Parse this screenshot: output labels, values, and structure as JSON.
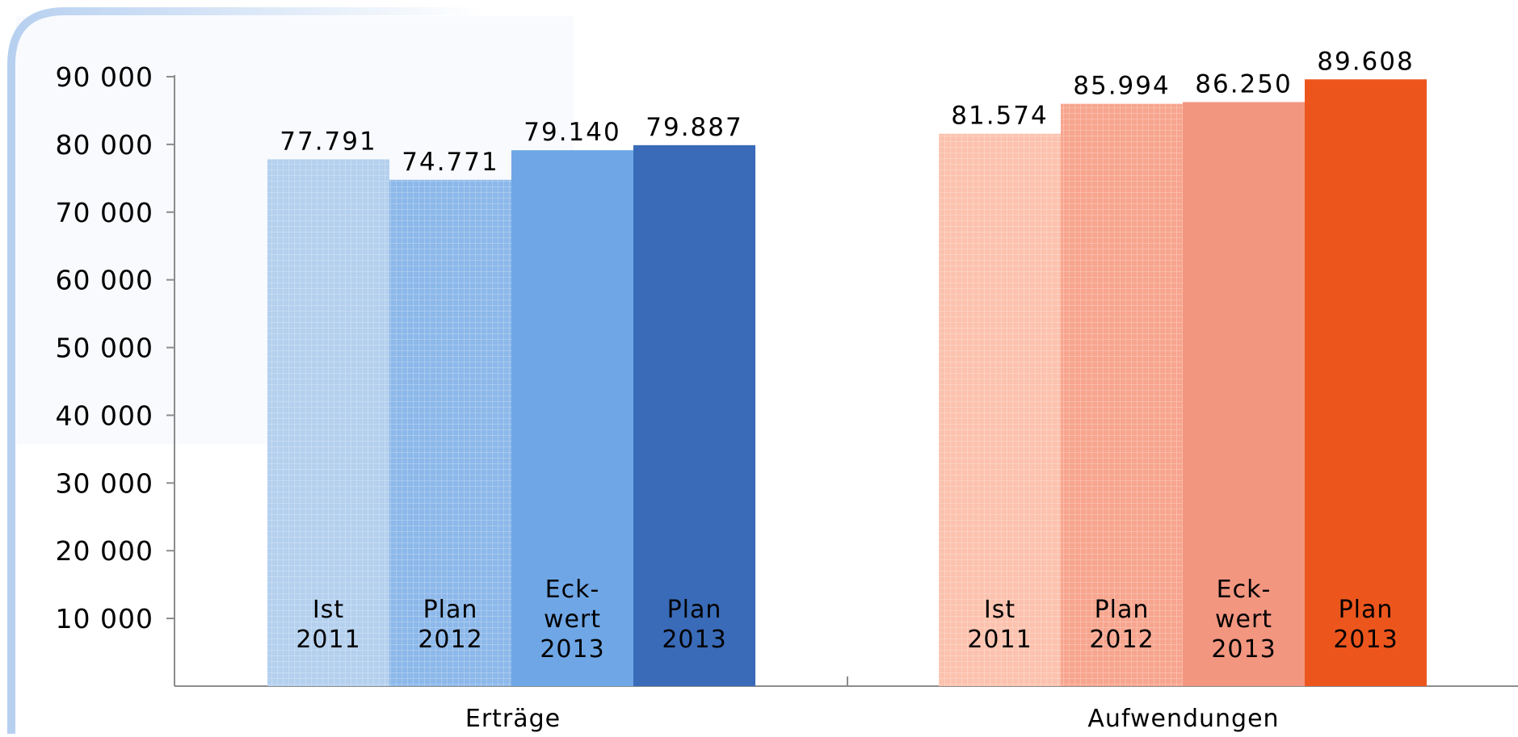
{
  "chart_data": {
    "type": "bar",
    "title": "",
    "xlabel": "",
    "ylabel": "",
    "ylim": [
      0,
      90000
    ],
    "yticks": [
      {
        "value": 10000,
        "label": "10 000"
      },
      {
        "value": 20000,
        "label": "20 000"
      },
      {
        "value": 30000,
        "label": "30 000"
      },
      {
        "value": 40000,
        "label": "40 000"
      },
      {
        "value": 50000,
        "label": "50 000"
      },
      {
        "value": 60000,
        "label": "60 000"
      },
      {
        "value": 70000,
        "label": "70 000"
      },
      {
        "value": 80000,
        "label": "80 000"
      },
      {
        "value": 90000,
        "label": "90 000"
      }
    ],
    "grid": false,
    "legend": "none",
    "groups": [
      {
        "name": "Erträge",
        "bars": [
          {
            "label_lines": [
              "Ist",
              "2011"
            ],
            "value": 77791,
            "value_label": "77.791",
            "color": "#b4d0ee",
            "hatched": true
          },
          {
            "label_lines": [
              "Plan",
              "2012"
            ],
            "value": 74771,
            "value_label": "74.771",
            "color": "#8cb8ea",
            "hatched": true
          },
          {
            "label_lines": [
              "Eck-",
              "wert",
              "2013"
            ],
            "value": 79140,
            "value_label": "79.140",
            "color": "#6fa7e6",
            "hatched": false
          },
          {
            "label_lines": [
              "Plan",
              "2013"
            ],
            "value": 79887,
            "value_label": "79.887",
            "color": "#3a6bb8",
            "hatched": false
          }
        ]
      },
      {
        "name": "Aufwendungen",
        "bars": [
          {
            "label_lines": [
              "Ist",
              "2011"
            ],
            "value": 81574,
            "value_label": "81.574",
            "color": "#fcc2ae",
            "hatched": true
          },
          {
            "label_lines": [
              "Plan",
              "2012"
            ],
            "value": 85994,
            "value_label": "85.994",
            "color": "#f7a58e",
            "hatched": true
          },
          {
            "label_lines": [
              "Eck-",
              "wert",
              "2013"
            ],
            "value": 86250,
            "value_label": "86.250",
            "color": "#f29680",
            "hatched": false
          },
          {
            "label_lines": [
              "Plan",
              "2013"
            ],
            "value": 89608,
            "value_label": "89.608",
            "color": "#ec561d",
            "hatched": false
          }
        ]
      }
    ]
  }
}
